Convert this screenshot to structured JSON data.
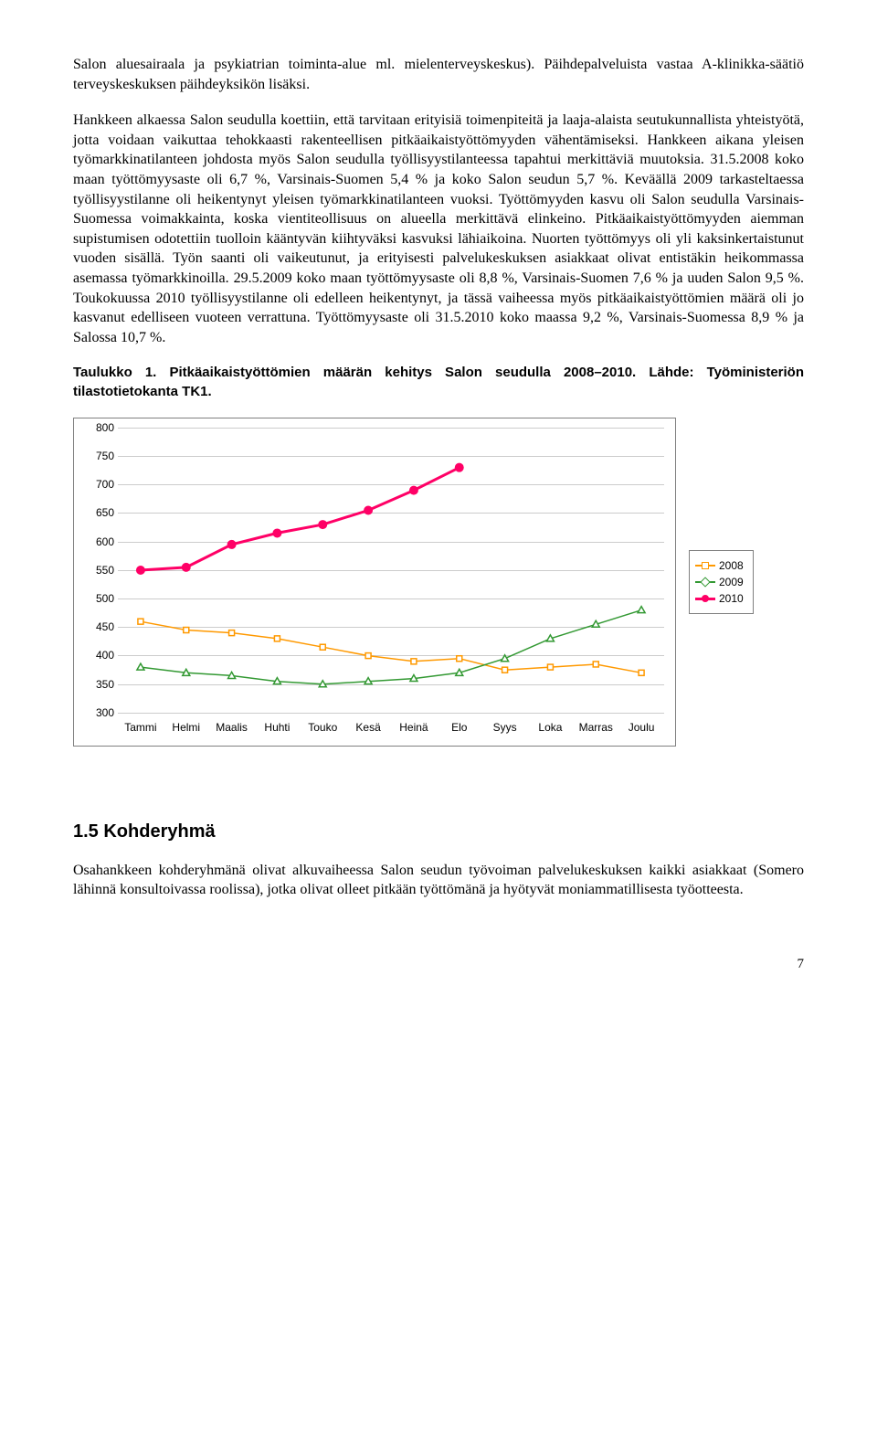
{
  "para1": "Salon aluesairaala ja psykiatrian toiminta-alue ml. mielenterveyskeskus). Päihdepalveluista vastaa A-klinikka-säätiö terveyskeskuksen päihdeyksikön lisäksi.",
  "para2": "Hankkeen alkaessa Salon seudulla koettiin, että tarvitaan erityisiä toimenpiteitä ja laaja-alaista seutukunnallista yhteistyötä, jotta voidaan vaikuttaa tehokkaasti rakenteellisen pitkäaikaistyöttömyyden vähentämiseksi. Hankkeen aikana yleisen työmarkkinatilanteen johdosta myös Salon seudulla työllisyystilanteessa tapahtui merkittäviä muutoksia. 31.5.2008 koko maan työttömyysaste oli 6,7 %, Varsinais-Suomen 5,4 % ja koko Salon seudun 5,7 %. Keväällä 2009 tarkasteltaessa työllisyystilanne oli heikentynyt yleisen työmarkkinatilanteen vuoksi. Työttömyyden kasvu oli Salon seudulla Varsinais-Suomessa voimakkainta, koska vientiteollisuus on alueella merkittävä elinkeino. Pitkäaikaistyöttömyyden aiemman supistumisen odotettiin tuolloin kääntyvän kiihtyväksi kasvuksi lähiaikoina. Nuorten työttömyys oli yli kaksinkertaistunut vuoden sisällä. Työn saanti oli vaikeutunut, ja erityisesti palvelukeskuksen asiakkaat olivat entistäkin heikommassa asemassa työmarkkinoilla. 29.5.2009 koko maan työttömyysaste oli 8,8 %, Varsinais-Suomen 7,6 % ja uuden Salon 9,5 %. Toukokuussa 2010 työllisyystilanne oli edelleen heikentynyt, ja tässä vaiheessa myös pitkäaikaistyöttömien määrä oli jo kasvanut edelliseen vuoteen verrattuna. Työttömyysaste oli 31.5.2010 koko maassa 9,2 %, Varsinais-Suomessa 8,9 % ja Salossa 10,7 %.",
  "table_title": "Taulukko 1. Pitkäaikaistyöttömien määrän kehitys Salon seudulla 2008–2010. Lähde: Työministeriön tilastotietokanta TK1.",
  "chart": {
    "type": "line",
    "ylim": [
      300,
      800
    ],
    "ytick_step": 50,
    "categories": [
      "Tammi",
      "Helmi",
      "Maalis",
      "Huhti",
      "Touko",
      "Kesä",
      "Heinä",
      "Elo",
      "Syys",
      "Loka",
      "Marras",
      "Joulu"
    ],
    "series": [
      {
        "name": "2008",
        "color": "#ff9900",
        "marker": "square",
        "values": [
          460,
          445,
          440,
          430,
          415,
          400,
          390,
          395,
          375,
          380,
          385,
          370
        ]
      },
      {
        "name": "2009",
        "color": "#339933",
        "marker": "triangle",
        "values": [
          380,
          370,
          365,
          355,
          350,
          355,
          360,
          370,
          395,
          430,
          455,
          480
        ]
      },
      {
        "name": "2010",
        "color": "#ff0066",
        "marker": "circle",
        "values": [
          550,
          555,
          595,
          615,
          630,
          655,
          690,
          730,
          null,
          null,
          null,
          null
        ]
      }
    ],
    "grid_color": "#cccccc",
    "background_color": "#ffffff",
    "axis_fontsize": 12,
    "line_width_thin": 1.5,
    "line_width_thick": 3
  },
  "section_heading": "1.5 Kohderyhmä",
  "para3": "Osahankkeen kohderyhmänä olivat alkuvaiheessa Salon seudun työvoiman palvelukeskuksen kaikki asiakkaat (Somero lähinnä konsultoivassa roolissa), jotka olivat olleet pitkään työttömänä ja hyötyvät moniammatillisesta työotteesta.",
  "page_number": "7"
}
